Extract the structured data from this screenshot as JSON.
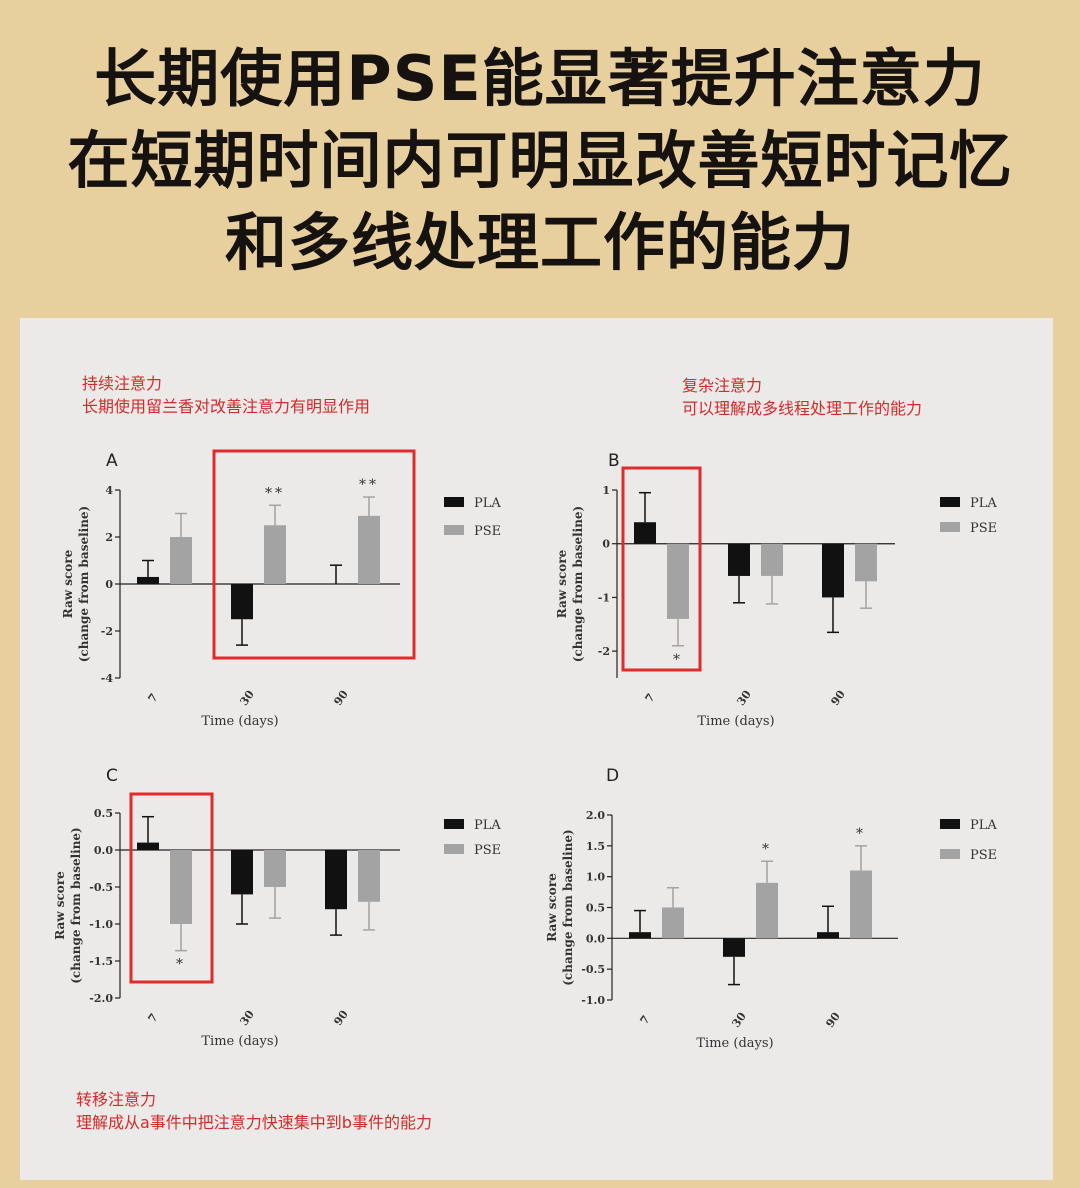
{
  "headline": [
    "长期使用PSE能显著提升注意力",
    "在短期时间内可明显改善短时记忆",
    "和多线处理工作的能力"
  ],
  "notes": {
    "sustained": [
      "持续注意力",
      "长期使用留兰香对改善注意力有明显作用"
    ],
    "complex": [
      "复杂注意力",
      "可以理解成多线程处理工作的能力"
    ],
    "shifting": [
      "转移注意力",
      "理解成从a事件中把注意力快速集中到b事件的能力"
    ]
  },
  "colors": {
    "background": "#e8cf9e",
    "panel": "#eceae8",
    "PLA": "#111111",
    "PSE": "#a3a3a3",
    "highlight": "#e02b2b",
    "note_text": "#d42a2a"
  },
  "chart_data": [
    {
      "panel": "A",
      "type": "bar",
      "categories": [
        "7",
        "30",
        "90"
      ],
      "series": [
        {
          "name": "PLA",
          "values": [
            0.3,
            -1.5,
            0.0
          ],
          "error": [
            0.7,
            1.1,
            0.8
          ]
        },
        {
          "name": "PSE",
          "values": [
            2.0,
            2.5,
            2.9
          ],
          "error": [
            1.0,
            0.85,
            0.8
          ]
        }
      ],
      "significance": [
        "",
        "**",
        "**"
      ],
      "ylim": [
        -4,
        4
      ],
      "yticks": [
        -4,
        -2,
        0,
        2,
        4
      ],
      "xlabel": "Time (days)",
      "ylabel": "Raw score",
      "ylabel2": "(change from baseline)",
      "legend": "right",
      "highlight_category": 1
    },
    {
      "panel": "B",
      "type": "bar",
      "categories": [
        "7",
        "30",
        "90"
      ],
      "series": [
        {
          "name": "PLA",
          "values": [
            0.4,
            -0.6,
            -1.0
          ],
          "error": [
            0.55,
            0.5,
            0.65
          ]
        },
        {
          "name": "PSE",
          "values": [
            -1.4,
            -0.6,
            -0.7
          ],
          "error": [
            0.5,
            0.52,
            0.5
          ]
        }
      ],
      "significance": [
        "*",
        "",
        ""
      ],
      "ylim": [
        -2.5,
        1
      ],
      "yticks": [
        -2,
        -1,
        0,
        1
      ],
      "xlabel": "Time (days)",
      "ylabel": "Raw score",
      "ylabel2": "(change from baseline)",
      "legend": "right",
      "highlight_category": 0
    },
    {
      "panel": "C",
      "type": "bar",
      "categories": [
        "7",
        "30",
        "90"
      ],
      "series": [
        {
          "name": "PLA",
          "values": [
            0.1,
            -0.6,
            -0.8
          ],
          "error": [
            0.35,
            0.4,
            0.35
          ]
        },
        {
          "name": "PSE",
          "values": [
            -1.0,
            -0.5,
            -0.7
          ],
          "error": [
            0.36,
            0.42,
            0.38
          ]
        }
      ],
      "significance": [
        "*",
        "",
        ""
      ],
      "ylim": [
        -2.0,
        0.5
      ],
      "yticks": [
        -2.0,
        -1.5,
        -1.0,
        -0.5,
        0.0,
        0.5
      ],
      "xlabel": "Time (days)",
      "ylabel": "Raw score",
      "ylabel2": "(change from baseline)",
      "legend": "right",
      "highlight_category": 0
    },
    {
      "panel": "D",
      "type": "bar",
      "categories": [
        "7",
        "30",
        "90"
      ],
      "series": [
        {
          "name": "PLA",
          "values": [
            0.1,
            -0.3,
            0.1
          ],
          "error": [
            0.35,
            0.45,
            0.42
          ]
        },
        {
          "name": "PSE",
          "values": [
            0.5,
            0.9,
            1.1
          ],
          "error": [
            0.32,
            0.35,
            0.4
          ]
        }
      ],
      "significance": [
        "",
        "*",
        "*"
      ],
      "ylim": [
        -1.0,
        2.0
      ],
      "yticks": [
        -1.0,
        -0.5,
        0.0,
        0.5,
        1.0,
        1.5,
        2.0
      ],
      "xlabel": "Time (days)",
      "ylabel": "Raw score",
      "ylabel2": "(change from baseline)",
      "legend": "right",
      "highlight_category": null
    }
  ]
}
